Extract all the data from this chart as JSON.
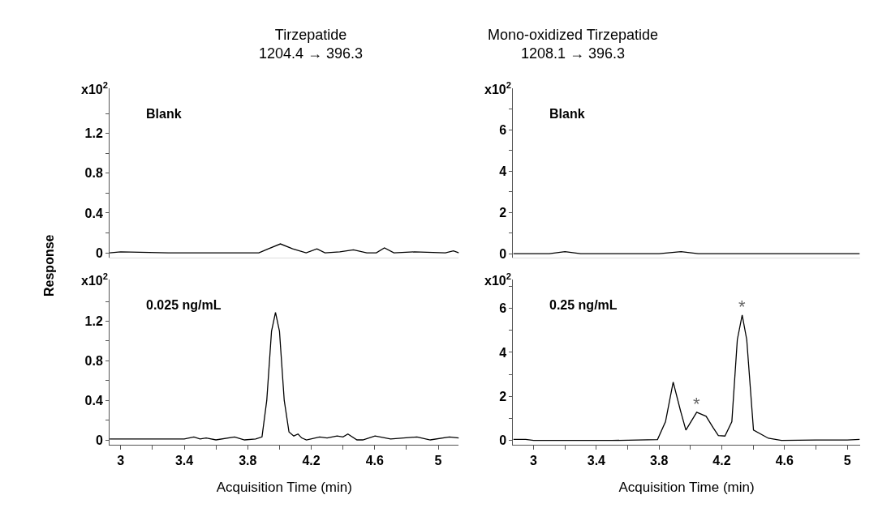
{
  "chart_data": [
    {
      "type": "line",
      "title": "Tirzepatide",
      "subtitle": "1204.4 → 396.3",
      "ylabel": "Response",
      "annotations": [
        "x10$^{2}$",
        "Blank"
      ],
      "xlim": [
        2.93,
        5.13
      ],
      "ylim": [
        -0.05,
        1.65
      ],
      "yticks": [
        0,
        {
          "value": 0.2,
          "label": null
        },
        0.4,
        {
          "value": 0.6,
          "label": null
        },
        0.8,
        {
          "value": 1.0,
          "label": null
        },
        1.2,
        {
          "value": 1.4,
          "label": null
        }
      ],
      "tick_labels": "y",
      "series": [
        {
          "color": "#000000",
          "x": [
            2.93,
            3.0,
            3.3,
            3.6,
            3.87,
            3.93,
            4.006,
            4.083,
            4.168,
            4.236,
            4.287,
            4.38,
            4.466,
            4.55,
            4.61,
            4.661,
            4.721,
            4.849,
            5.045,
            5.096,
            5.13
          ],
          "values": [
            0.0,
            0.01,
            0.0,
            0.0,
            0.0,
            0.04,
            0.09,
            0.04,
            0.0,
            0.04,
            0.0,
            0.01,
            0.03,
            0.0,
            0.0,
            0.05,
            0.0,
            0.01,
            0.0,
            0.02,
            0.0
          ]
        }
      ]
    },
    {
      "type": "line",
      "title": "Mono-oxidized Tirzepatide",
      "subtitle": "1208.1 → 396.3",
      "annotations": [
        "x10$^{2}$",
        "Blank"
      ],
      "xlim": [
        2.87,
        5.08
      ],
      "ylim": [
        -0.2,
        8
      ],
      "yticks": [
        0,
        {
          "value": 1,
          "label": null
        },
        2,
        {
          "value": 3,
          "label": null
        },
        4,
        {
          "value": 5,
          "label": null
        },
        6,
        {
          "value": 7,
          "label": null
        }
      ],
      "tick_labels": "y",
      "series": [
        {
          "color": "#000000",
          "x": [
            2.87,
            3.1,
            3.2,
            3.3,
            3.8,
            3.94,
            4.05,
            4.5,
            4.9,
            5.08
          ],
          "values": [
            0.0,
            0.0,
            0.1,
            0.0,
            0.0,
            0.1,
            0.0,
            0.0,
            0.0,
            0.0
          ]
        }
      ]
    },
    {
      "type": "line",
      "xlabel": "Acquisition Time (min)",
      "annotations": [
        "x10$^{2}$",
        "0.025 ng/mL"
      ],
      "xlim": [
        2.93,
        5.13
      ],
      "ylim": [
        -0.05,
        1.62
      ],
      "xticks": [
        3,
        {
          "value": 3.2,
          "label": null
        },
        3.4,
        {
          "value": 3.6,
          "label": null
        },
        3.8,
        {
          "value": 4.0,
          "label": null
        },
        4.2,
        {
          "value": 4.4,
          "label": null
        },
        4.6,
        {
          "value": 4.8,
          "label": null
        },
        5
      ],
      "yticks": [
        0,
        {
          "value": 0.2,
          "label": null
        },
        0.4,
        {
          "value": 0.6,
          "label": null
        },
        0.8,
        {
          "value": 1.0,
          "label": null
        },
        1.2,
        {
          "value": 1.4,
          "label": null
        }
      ],
      "series": [
        {
          "color": "#000000",
          "x": [
            2.93,
            3.2,
            3.4,
            3.461,
            3.5,
            3.538,
            3.6,
            3.717,
            3.78,
            3.85,
            3.89,
            3.92,
            3.95,
            3.975,
            4.0,
            4.03,
            4.06,
            4.09,
            4.117,
            4.14,
            4.17,
            4.253,
            4.3,
            4.363,
            4.4,
            4.431,
            4.488,
            4.525,
            4.602,
            4.7,
            4.866,
            4.95,
            5.07,
            5.13
          ],
          "values": [
            0.01,
            0.01,
            0.01,
            0.03,
            0.01,
            0.02,
            0.0,
            0.03,
            0.0,
            0.01,
            0.03,
            0.4,
            1.1,
            1.29,
            1.1,
            0.4,
            0.08,
            0.04,
            0.06,
            0.02,
            0.0,
            0.03,
            0.02,
            0.04,
            0.03,
            0.06,
            0.0,
            0.0,
            0.04,
            0.01,
            0.03,
            0.0,
            0.03,
            0.02
          ]
        }
      ]
    },
    {
      "type": "line",
      "xlabel": "Acquisition Time (min)",
      "annotations": [
        "x10$^{2}$",
        "0.25 ng/mL",
        {
          "text": "*",
          "x": 4.04,
          "y": 1.28
        },
        {
          "text": "*",
          "x": 4.33,
          "y": 5.7
        }
      ],
      "xlim": [
        2.87,
        5.08
      ],
      "ylim": [
        -0.2,
        7.3
      ],
      "xticks": [
        3,
        {
          "value": 3.2,
          "label": null
        },
        3.4,
        {
          "value": 3.6,
          "label": null
        },
        3.8,
        {
          "value": 4.0,
          "label": null
        },
        4.2,
        {
          "value": 4.4,
          "label": null
        },
        4.6,
        {
          "value": 4.8,
          "label": null
        },
        5
      ],
      "yticks": [
        0,
        {
          "value": 1,
          "label": null
        },
        2,
        {
          "value": 3,
          "label": null
        },
        4,
        {
          "value": 5,
          "label": null
        },
        6,
        {
          "value": 7,
          "label": null
        }
      ],
      "series": [
        {
          "color": "#000000",
          "x": [
            2.87,
            2.95,
            3.0,
            3.5,
            3.79,
            3.841,
            3.89,
            3.937,
            3.971,
            4.04,
            4.1,
            4.143,
            4.178,
            4.22,
            4.264,
            4.299,
            4.33,
            4.359,
            4.402,
            4.497,
            4.58,
            4.8,
            5.0,
            5.08
          ],
          "values": [
            0.05,
            0.05,
            0.0,
            0.0,
            0.04,
            0.85,
            2.65,
            1.34,
            0.47,
            1.28,
            1.1,
            0.6,
            0.22,
            0.2,
            0.85,
            4.58,
            5.7,
            4.58,
            0.47,
            0.1,
            0.0,
            0.02,
            0.02,
            0.05
          ]
        }
      ]
    }
  ]
}
